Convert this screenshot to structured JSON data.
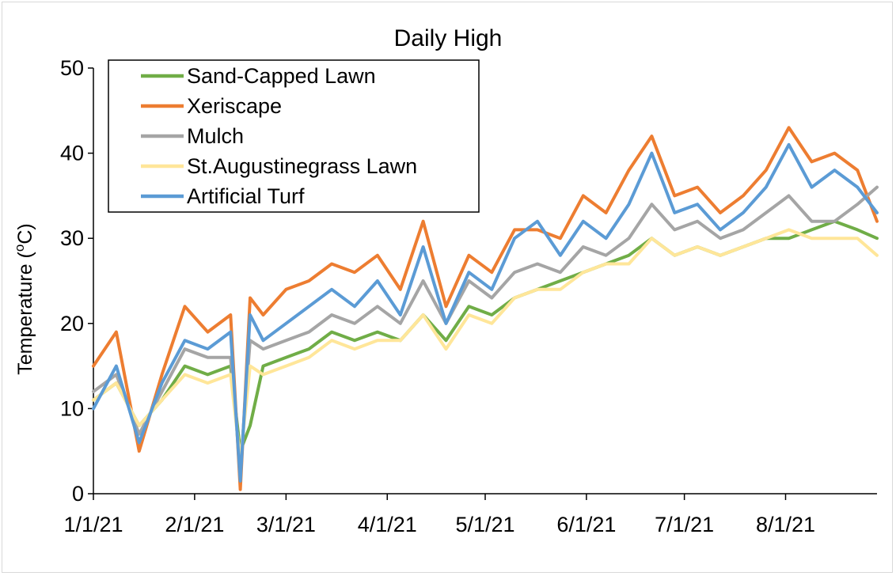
{
  "chart_data": {
    "type": "line",
    "title": "Daily High",
    "xlabel": "",
    "ylabel": "Temperature (",
    "ylabel_sup": "o",
    "ylabel_tail": "C)",
    "ylim": [
      0,
      50
    ],
    "yticks": [
      "0",
      "10",
      "20",
      "30",
      "40",
      "50"
    ],
    "xlim": [
      "1/1/21",
      "8/29/21"
    ],
    "xticks": [
      "1/1/21",
      "2/1/21",
      "3/1/21",
      "4/1/21",
      "5/1/21",
      "6/1/21",
      "7/1/21",
      "8/1/21"
    ],
    "grid": false,
    "legend_position": "top-left",
    "dates": [
      "1/1/21",
      "1/8/21",
      "1/15/21",
      "1/22/21",
      "1/29/21",
      "2/5/21",
      "2/12/21",
      "2/15/21",
      "2/18/21",
      "2/22/21",
      "3/1/21",
      "3/8/21",
      "3/15/21",
      "3/22/21",
      "3/29/21",
      "4/5/21",
      "4/12/21",
      "4/19/21",
      "4/26/21",
      "5/3/21",
      "5/10/21",
      "5/17/21",
      "5/24/21",
      "5/31/21",
      "6/7/21",
      "6/14/21",
      "6/21/21",
      "6/28/21",
      "7/5/21",
      "7/12/21",
      "7/19/21",
      "7/26/21",
      "8/2/21",
      "8/9/21",
      "8/16/21",
      "8/23/21",
      "8/29/21"
    ],
    "series": [
      {
        "name": "Sand-Capped Lawn",
        "color": "#70ad47",
        "values": [
          11,
          13,
          8,
          11,
          15,
          14,
          15,
          5,
          8,
          15,
          16,
          17,
          19,
          18,
          19,
          18,
          21,
          18,
          22,
          21,
          23,
          24,
          25,
          26,
          27,
          28,
          30,
          28,
          29,
          28,
          29,
          30,
          30,
          31,
          32,
          31,
          30
        ]
      },
      {
        "name": "Xeriscape",
        "color": "#ed7d31",
        "values": [
          15,
          19,
          5,
          14,
          22,
          19,
          21,
          0.5,
          23,
          21,
          24,
          25,
          27,
          26,
          28,
          24,
          32,
          22,
          28,
          26,
          31,
          31,
          30,
          35,
          33,
          38,
          42,
          35,
          36,
          33,
          35,
          38,
          43,
          39,
          40,
          38,
          32
        ]
      },
      {
        "name": "Mulch",
        "color": "#a5a5a5",
        "values": [
          12,
          14,
          7,
          12,
          17,
          16,
          16,
          3,
          18,
          17,
          18,
          19,
          21,
          20,
          22,
          20,
          25,
          20,
          25,
          23,
          26,
          27,
          26,
          29,
          28,
          30,
          34,
          31,
          32,
          30,
          31,
          33,
          35,
          32,
          32,
          34,
          36
        ]
      },
      {
        "name": "St.Augustinegrass Lawn",
        "color": "#ffe699",
        "values": [
          11,
          13,
          8,
          11,
          14,
          13,
          14,
          4,
          15,
          14,
          15,
          16,
          18,
          17,
          18,
          18,
          21,
          17,
          21,
          20,
          23,
          24,
          24,
          26,
          27,
          27,
          30,
          28,
          29,
          28,
          29,
          30,
          31,
          30,
          30,
          30,
          28
        ]
      },
      {
        "name": "Artificial Turf",
        "color": "#5b9bd5",
        "values": [
          10,
          15,
          6,
          13,
          18,
          17,
          19,
          1.5,
          21,
          18,
          20,
          22,
          24,
          22,
          25,
          21,
          29,
          20,
          26,
          24,
          30,
          32,
          28,
          32,
          30,
          34,
          40,
          33,
          34,
          31,
          33,
          36,
          41,
          36,
          38,
          36,
          33
        ]
      }
    ]
  }
}
